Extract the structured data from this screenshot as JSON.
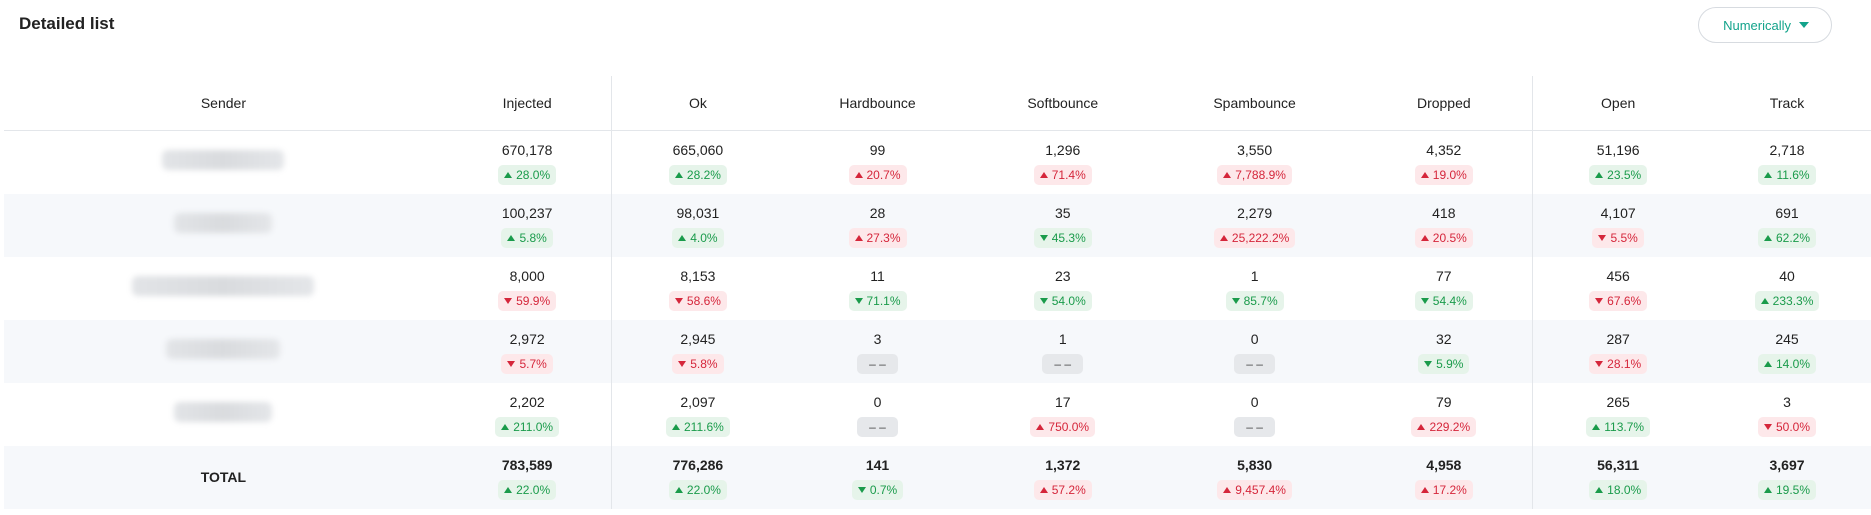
{
  "title": "Detailed list",
  "sort_button": {
    "label": "Numerically",
    "icon": "caret-down-icon"
  },
  "colors": {
    "accent": "#13a38b",
    "up_green": "#1a9b4b",
    "down_red": "#d5263b"
  },
  "columns": [
    "Sender",
    "Injected",
    "Ok",
    "Hardbounce",
    "Softbounce",
    "Spambounce",
    "Dropped",
    "Open",
    "Track"
  ],
  "rows": [
    {
      "sender_redacted": true,
      "cells": [
        {
          "value": "670,178",
          "change": "28.0%",
          "dir": "up",
          "tone": "green"
        },
        {
          "value": "665,060",
          "change": "28.2%",
          "dir": "up",
          "tone": "green"
        },
        {
          "value": "99",
          "change": "20.7%",
          "dir": "up",
          "tone": "red"
        },
        {
          "value": "1,296",
          "change": "71.4%",
          "dir": "up",
          "tone": "red"
        },
        {
          "value": "3,550",
          "change": "7,788.9%",
          "dir": "up",
          "tone": "red"
        },
        {
          "value": "4,352",
          "change": "19.0%",
          "dir": "up",
          "tone": "red"
        },
        {
          "value": "51,196",
          "change": "23.5%",
          "dir": "up",
          "tone": "green"
        },
        {
          "value": "2,718",
          "change": "11.6%",
          "dir": "up",
          "tone": "green"
        }
      ]
    },
    {
      "sender_redacted": true,
      "cells": [
        {
          "value": "100,237",
          "change": "5.8%",
          "dir": "up",
          "tone": "green"
        },
        {
          "value": "98,031",
          "change": "4.0%",
          "dir": "up",
          "tone": "green"
        },
        {
          "value": "28",
          "change": "27.3%",
          "dir": "up",
          "tone": "red"
        },
        {
          "value": "35",
          "change": "45.3%",
          "dir": "down",
          "tone": "green"
        },
        {
          "value": "2,279",
          "change": "25,222.2%",
          "dir": "up",
          "tone": "red"
        },
        {
          "value": "418",
          "change": "20.5%",
          "dir": "up",
          "tone": "red"
        },
        {
          "value": "4,107",
          "change": "5.5%",
          "dir": "down",
          "tone": "red"
        },
        {
          "value": "691",
          "change": "62.2%",
          "dir": "up",
          "tone": "green"
        }
      ]
    },
    {
      "sender_redacted": true,
      "cells": [
        {
          "value": "8,000",
          "change": "59.9%",
          "dir": "down",
          "tone": "red"
        },
        {
          "value": "8,153",
          "change": "58.6%",
          "dir": "down",
          "tone": "red"
        },
        {
          "value": "11",
          "change": "71.1%",
          "dir": "down",
          "tone": "green"
        },
        {
          "value": "23",
          "change": "54.0%",
          "dir": "down",
          "tone": "green"
        },
        {
          "value": "1",
          "change": "85.7%",
          "dir": "down",
          "tone": "green"
        },
        {
          "value": "77",
          "change": "54.4%",
          "dir": "down",
          "tone": "green"
        },
        {
          "value": "456",
          "change": "67.6%",
          "dir": "down",
          "tone": "red"
        },
        {
          "value": "40",
          "change": "233.3%",
          "dir": "up",
          "tone": "green"
        }
      ]
    },
    {
      "sender_redacted": true,
      "cells": [
        {
          "value": "2,972",
          "change": "5.7%",
          "dir": "down",
          "tone": "red"
        },
        {
          "value": "2,945",
          "change": "5.8%",
          "dir": "down",
          "tone": "red"
        },
        {
          "value": "3",
          "change": "– –",
          "dir": "none",
          "tone": "grey"
        },
        {
          "value": "1",
          "change": "– –",
          "dir": "none",
          "tone": "grey"
        },
        {
          "value": "0",
          "change": "– –",
          "dir": "none",
          "tone": "grey"
        },
        {
          "value": "32",
          "change": "5.9%",
          "dir": "down",
          "tone": "green"
        },
        {
          "value": "287",
          "change": "28.1%",
          "dir": "down",
          "tone": "red"
        },
        {
          "value": "245",
          "change": "14.0%",
          "dir": "up",
          "tone": "green"
        }
      ]
    },
    {
      "sender_redacted": true,
      "cells": [
        {
          "value": "2,202",
          "change": "211.0%",
          "dir": "up",
          "tone": "green"
        },
        {
          "value": "2,097",
          "change": "211.6%",
          "dir": "up",
          "tone": "green"
        },
        {
          "value": "0",
          "change": "– –",
          "dir": "none",
          "tone": "grey"
        },
        {
          "value": "17",
          "change": "750.0%",
          "dir": "up",
          "tone": "red"
        },
        {
          "value": "0",
          "change": "– –",
          "dir": "none",
          "tone": "grey"
        },
        {
          "value": "79",
          "change": "229.2%",
          "dir": "up",
          "tone": "red"
        },
        {
          "value": "265",
          "change": "113.7%",
          "dir": "up",
          "tone": "green"
        },
        {
          "value": "3",
          "change": "50.0%",
          "dir": "down",
          "tone": "red"
        }
      ]
    }
  ],
  "total": {
    "label": "TOTAL",
    "cells": [
      {
        "value": "783,589",
        "change": "22.0%",
        "dir": "up",
        "tone": "green"
      },
      {
        "value": "776,286",
        "change": "22.0%",
        "dir": "up",
        "tone": "green"
      },
      {
        "value": "141",
        "change": "0.7%",
        "dir": "down",
        "tone": "green"
      },
      {
        "value": "1,372",
        "change": "57.2%",
        "dir": "up",
        "tone": "red"
      },
      {
        "value": "5,830",
        "change": "9,457.4%",
        "dir": "up",
        "tone": "red"
      },
      {
        "value": "4,958",
        "change": "17.2%",
        "dir": "up",
        "tone": "red"
      },
      {
        "value": "56,311",
        "change": "18.0%",
        "dir": "up",
        "tone": "green"
      },
      {
        "value": "3,697",
        "change": "19.5%",
        "dir": "up",
        "tone": "green"
      }
    ]
  }
}
